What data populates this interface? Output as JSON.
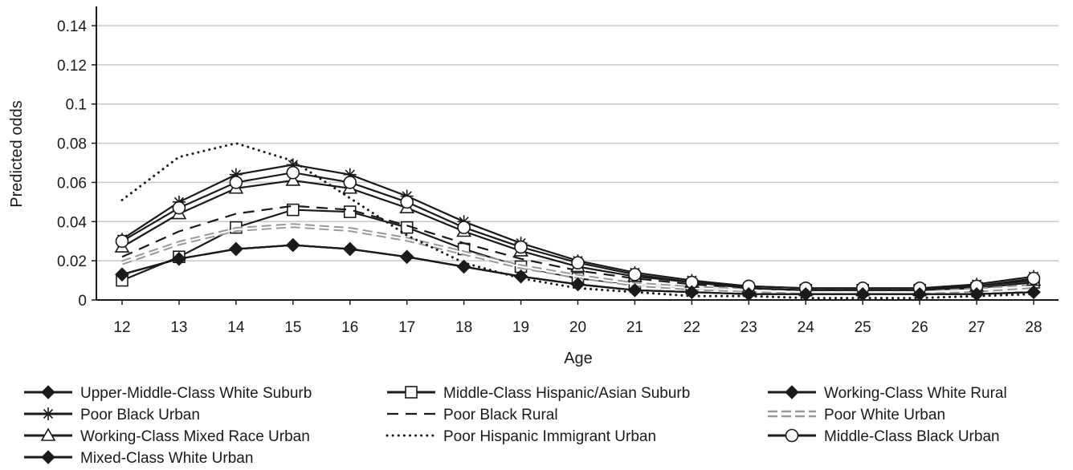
{
  "chart_data": {
    "type": "line",
    "title": "",
    "xlabel": "Age",
    "ylabel": "Predicted odds",
    "xlim": [
      12,
      28
    ],
    "ylim": [
      0,
      0.14
    ],
    "x": [
      12,
      13,
      14,
      15,
      16,
      17,
      18,
      19,
      20,
      21,
      22,
      23,
      24,
      25,
      26,
      27,
      28
    ],
    "x_tick_labels": [
      "12",
      "13",
      "14",
      "15",
      "16",
      "17",
      "18",
      "19",
      "20",
      "21",
      "22",
      "23",
      "24",
      "25",
      "26",
      "27",
      "28"
    ],
    "y_ticks": [
      0,
      0.02,
      0.04,
      0.06,
      0.08,
      0.1,
      0.12,
      0.14
    ],
    "y_tick_labels": [
      "0",
      "0.02",
      "0.04",
      "0.06",
      "0.08",
      "0.1",
      "0.12",
      "0.14"
    ],
    "grid": "horizontal",
    "legend_position": "bottom",
    "series": [
      {
        "name": "Upper-Middle-Class White Suburb",
        "style": "solid",
        "marker": "diamond",
        "color": "#1a1a1a",
        "values": [
          0.013,
          0.021,
          0.026,
          0.028,
          0.026,
          0.022,
          0.017,
          0.012,
          0.008,
          0.005,
          0.004,
          0.003,
          0.003,
          0.003,
          0.003,
          0.003,
          0.004
        ]
      },
      {
        "name": "Middle-Class Hispanic/Asian Suburb",
        "style": "solid",
        "marker": "square",
        "color": "#1a1a1a",
        "values": [
          0.01,
          0.022,
          0.037,
          0.046,
          0.045,
          0.037,
          0.026,
          0.017,
          0.011,
          0.008,
          0.006,
          0.005,
          0.005,
          0.005,
          0.005,
          0.006,
          0.009
        ]
      },
      {
        "name": "Working-Class White Rural",
        "style": "solid",
        "marker": "diamond",
        "color": "#1a1a1a",
        "values": [
          0.013,
          0.021,
          0.026,
          0.028,
          0.026,
          0.022,
          0.017,
          0.012,
          0.008,
          0.005,
          0.004,
          0.003,
          0.003,
          0.003,
          0.003,
          0.003,
          0.004
        ]
      },
      {
        "name": "Poor Black Urban",
        "style": "solid",
        "marker": "asterisk",
        "color": "#1a1a1a",
        "values": [
          0.031,
          0.05,
          0.064,
          0.069,
          0.064,
          0.053,
          0.04,
          0.029,
          0.02,
          0.014,
          0.01,
          0.007,
          0.006,
          0.006,
          0.006,
          0.008,
          0.012
        ]
      },
      {
        "name": "Poor Black Rural",
        "style": "dashed",
        "marker": "none",
        "color": "#1a1a1a",
        "values": [
          0.022,
          0.035,
          0.044,
          0.048,
          0.046,
          0.038,
          0.029,
          0.021,
          0.015,
          0.011,
          0.008,
          0.006,
          0.005,
          0.005,
          0.005,
          0.007,
          0.01
        ]
      },
      {
        "name": "Poor White Urban",
        "style": "double",
        "marker": "none",
        "color": "#999999",
        "values": [
          0.019,
          0.029,
          0.036,
          0.038,
          0.036,
          0.031,
          0.024,
          0.017,
          0.012,
          0.008,
          0.006,
          0.005,
          0.004,
          0.004,
          0.004,
          0.005,
          0.007
        ]
      },
      {
        "name": "Working-Class Mixed Race Urban",
        "style": "solid",
        "marker": "triangle",
        "color": "#1a1a1a",
        "values": [
          0.027,
          0.044,
          0.057,
          0.061,
          0.057,
          0.047,
          0.035,
          0.025,
          0.017,
          0.012,
          0.009,
          0.006,
          0.005,
          0.005,
          0.005,
          0.007,
          0.01
        ]
      },
      {
        "name": "Poor Hispanic Immigrant Urban",
        "style": "dotted",
        "marker": "none",
        "color": "#1a1a1a",
        "values": [
          0.051,
          0.073,
          0.08,
          0.071,
          0.052,
          0.033,
          0.019,
          0.011,
          0.006,
          0.004,
          0.002,
          0.002,
          0.001,
          0.001,
          0.001,
          0.002,
          0.003
        ]
      },
      {
        "name": "Middle-Class Black Urban",
        "style": "solid",
        "marker": "circle",
        "color": "#1a1a1a",
        "values": [
          0.03,
          0.047,
          0.06,
          0.065,
          0.06,
          0.05,
          0.037,
          0.027,
          0.019,
          0.013,
          0.009,
          0.007,
          0.006,
          0.006,
          0.006,
          0.007,
          0.011
        ]
      },
      {
        "name": "Mixed-Class White Urban",
        "style": "solid",
        "marker": "diamond",
        "color": "#1a1a1a",
        "values": [
          0.013,
          0.021,
          0.026,
          0.028,
          0.026,
          0.022,
          0.017,
          0.012,
          0.008,
          0.005,
          0.004,
          0.003,
          0.003,
          0.003,
          0.003,
          0.003,
          0.004
        ]
      }
    ]
  }
}
